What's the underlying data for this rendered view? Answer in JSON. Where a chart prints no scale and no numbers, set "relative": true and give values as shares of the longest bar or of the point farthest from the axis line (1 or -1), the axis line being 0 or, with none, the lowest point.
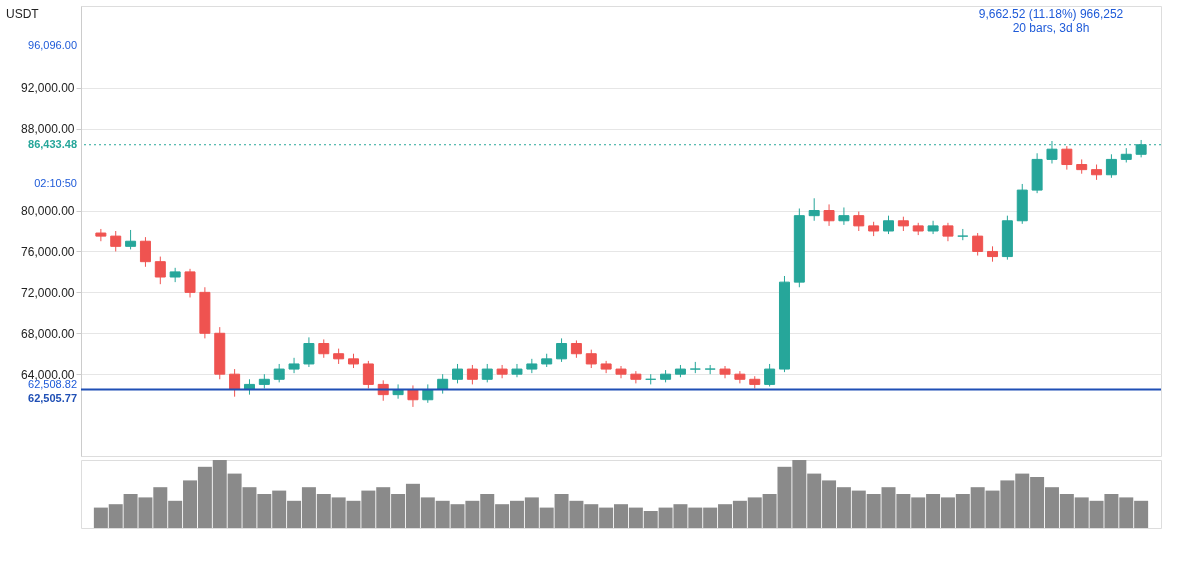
{
  "chart_data": [
    {
      "type": "candlestick",
      "categories": [
        null,
        null,
        null,
        null,
        null,
        null,
        null,
        null,
        null,
        null,
        null,
        null,
        null,
        null,
        null,
        null,
        null,
        null,
        null,
        null,
        null,
        null,
        null,
        null,
        null,
        null,
        null,
        null,
        null,
        null,
        null,
        null,
        null,
        null,
        null,
        null,
        null,
        null,
        null,
        null,
        null,
        null,
        null,
        null,
        null,
        null,
        null,
        null,
        null,
        null,
        null,
        null,
        null,
        null,
        null,
        null,
        null,
        null,
        null,
        null,
        null,
        null,
        null,
        null,
        null,
        null,
        null,
        null,
        null,
        null,
        null
      ],
      "ohlc": [
        [
          77800,
          78200,
          77000,
          77500
        ],
        [
          77500,
          78000,
          76000,
          76500
        ],
        [
          76500,
          78100,
          76200,
          77000
        ],
        [
          77000,
          77400,
          74500,
          75000
        ],
        [
          75000,
          75500,
          72800,
          73500
        ],
        [
          73500,
          74400,
          73000,
          74000
        ],
        [
          74000,
          74300,
          71500,
          72000
        ],
        [
          72000,
          72500,
          67500,
          68000
        ],
        [
          68000,
          68600,
          63500,
          64000
        ],
        [
          64000,
          64500,
          61800,
          62500
        ],
        [
          62500,
          63500,
          62000,
          63000
        ],
        [
          63000,
          64000,
          62600,
          63500
        ],
        [
          63500,
          65000,
          63200,
          64500
        ],
        [
          64500,
          65600,
          64100,
          65000
        ],
        [
          65000,
          67600,
          64700,
          67000
        ],
        [
          67000,
          67400,
          65600,
          66000
        ],
        [
          66000,
          66500,
          65000,
          65500
        ],
        [
          65500,
          66000,
          64600,
          65000
        ],
        [
          65000,
          65300,
          62600,
          63000
        ],
        [
          63000,
          63400,
          61400,
          62000
        ],
        [
          62000,
          63000,
          61600,
          62500
        ],
        [
          62500,
          62900,
          60800,
          61500
        ],
        [
          61500,
          63000,
          61200,
          62500
        ],
        [
          62500,
          64000,
          62100,
          63500
        ],
        [
          63500,
          65000,
          63100,
          64500
        ],
        [
          64500,
          64900,
          63000,
          63500
        ],
        [
          63500,
          65000,
          63200,
          64500
        ],
        [
          64500,
          64900,
          63600,
          64000
        ],
        [
          64000,
          65000,
          63700,
          64500
        ],
        [
          64500,
          65500,
          64100,
          65000
        ],
        [
          65000,
          66000,
          64700,
          65500
        ],
        [
          65500,
          67500,
          65200,
          67000
        ],
        [
          67000,
          67300,
          65600,
          66000
        ],
        [
          66000,
          66400,
          64600,
          65000
        ],
        [
          65000,
          65300,
          64100,
          64500
        ],
        [
          64500,
          64800,
          63600,
          64000
        ],
        [
          64000,
          64300,
          63100,
          63500
        ],
        [
          63500,
          64000,
          63000,
          63500
        ],
        [
          63500,
          64400,
          63200,
          64000
        ],
        [
          64000,
          64900,
          63700,
          64500
        ],
        [
          64500,
          65200,
          64100,
          64500
        ],
        [
          64500,
          64900,
          64000,
          64500
        ],
        [
          64500,
          64800,
          63600,
          64000
        ],
        [
          64000,
          64300,
          63100,
          63500
        ],
        [
          63500,
          63800,
          62600,
          63000
        ],
        [
          63000,
          65000,
          62800,
          64500
        ],
        [
          64500,
          73600,
          64200,
          73000
        ],
        [
          73000,
          80200,
          72500,
          79500
        ],
        [
          79500,
          81200,
          79000,
          80000
        ],
        [
          80000,
          80600,
          78500,
          79000
        ],
        [
          79000,
          80300,
          78600,
          79500
        ],
        [
          79500,
          79900,
          78000,
          78500
        ],
        [
          78500,
          78900,
          77500,
          78000
        ],
        [
          78000,
          79500,
          77700,
          79000
        ],
        [
          79000,
          79400,
          78000,
          78500
        ],
        [
          78500,
          78800,
          77600,
          78000
        ],
        [
          78000,
          79000,
          77700,
          78500
        ],
        [
          78500,
          78800,
          77000,
          77500
        ],
        [
          77500,
          78200,
          77100,
          77500
        ],
        [
          77500,
          77800,
          75600,
          76000
        ],
        [
          76000,
          76500,
          75000,
          75500
        ],
        [
          75500,
          79500,
          75200,
          79000
        ],
        [
          79000,
          82600,
          78700,
          82000
        ],
        [
          82000,
          85600,
          81700,
          85000
        ],
        [
          85000,
          86800,
          84600,
          86000
        ],
        [
          86000,
          86300,
          84000,
          84500
        ],
        [
          84500,
          85000,
          83600,
          84000
        ],
        [
          84000,
          84500,
          83000,
          83500
        ],
        [
          83500,
          85500,
          83200,
          85000
        ],
        [
          85000,
          86100,
          84700,
          85500
        ],
        [
          85500,
          86900,
          85200,
          86433.48
        ]
      ],
      "ylim": [
        56000,
        100000
      ],
      "yticks": [
        {
          "value": 64000,
          "label": "64,000.00"
        },
        {
          "value": 68000,
          "label": "68,000.00"
        },
        {
          "value": 72000,
          "label": "72,000.00"
        },
        {
          "value": 76000,
          "label": "76,000.00"
        },
        {
          "value": 80000,
          "label": "80,000.00"
        },
        {
          "value": 88000,
          "label": "88,000.00"
        },
        {
          "value": 92000,
          "label": "92,000.00"
        }
      ],
      "grid": "y",
      "ref_lines": [
        {
          "axis": "y",
          "value": 62505.77,
          "label": "62,505.77",
          "color": "#1f4fb5",
          "line_style": "solid"
        },
        {
          "axis": "y",
          "value": 86433.48,
          "label": "86,433.48",
          "color": "#26a69a",
          "line_style": "dotted"
        }
      ],
      "annotations": [
        "USDT",
        "9,662.52 (11.18%) 966,252",
        "20 bars, 3d 8h",
        "96,096.00",
        "02:10:50",
        "62,508.82"
      ]
    },
    {
      "type": "bar",
      "relative": true,
      "color": "#8a8a8a",
      "categories": [
        null,
        null,
        null,
        null,
        null,
        null,
        null,
        null,
        null,
        null,
        null,
        null,
        null,
        null,
        null,
        null,
        null,
        null,
        null,
        null,
        null,
        null,
        null,
        null,
        null,
        null,
        null,
        null,
        null,
        null,
        null,
        null,
        null,
        null,
        null,
        null,
        null,
        null,
        null,
        null,
        null,
        null,
        null,
        null,
        null,
        null,
        null,
        null,
        null,
        null,
        null,
        null,
        null,
        null,
        null,
        null,
        null,
        null,
        null,
        null,
        null,
        null,
        null,
        null,
        null,
        null,
        null,
        null,
        null,
        null,
        null
      ],
      "values": [
        0.3,
        0.35,
        0.5,
        0.45,
        0.6,
        0.4,
        0.7,
        0.9,
        1,
        0.8,
        0.6,
        0.5,
        0.55,
        0.4,
        0.6,
        0.5,
        0.45,
        0.4,
        0.55,
        0.6,
        0.5,
        0.65,
        0.45,
        0.4,
        0.35,
        0.4,
        0.5,
        0.35,
        0.4,
        0.45,
        0.3,
        0.5,
        0.4,
        0.35,
        0.3,
        0.35,
        0.3,
        0.25,
        0.3,
        0.35,
        0.3,
        0.3,
        0.35,
        0.4,
        0.45,
        0.5,
        0.9,
        1,
        0.8,
        0.7,
        0.6,
        0.55,
        0.5,
        0.6,
        0.5,
        0.45,
        0.5,
        0.45,
        0.5,
        0.6,
        0.55,
        0.7,
        0.8,
        0.75,
        0.6,
        0.5,
        0.45,
        0.4,
        0.5,
        0.45,
        0.4
      ]
    }
  ]
}
